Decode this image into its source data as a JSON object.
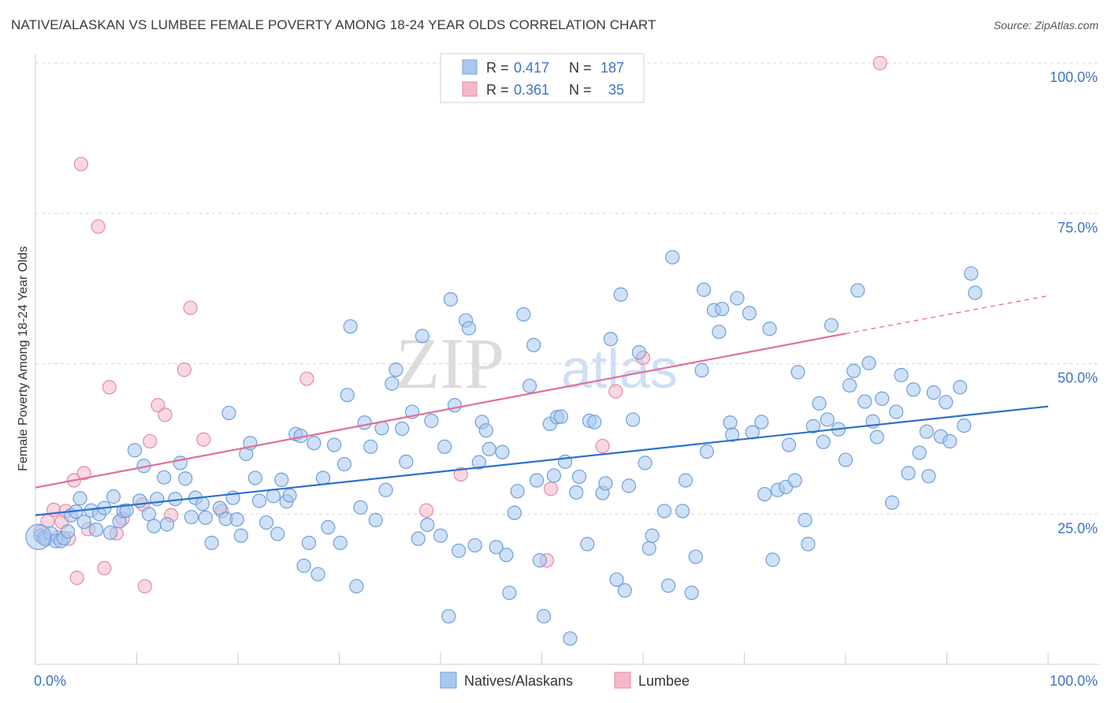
{
  "header": {
    "title": "NATIVE/ALASKAN VS LUMBEE FEMALE POVERTY AMONG 18-24 YEAR OLDS CORRELATION CHART",
    "source": "Source: ZipAtlas.com"
  },
  "watermark": {
    "zip": "ZIP",
    "atlas": "atlas"
  },
  "colors": {
    "blue_fill": "#a8c8f0",
    "blue_stroke": "#6f9fd8",
    "blue_line": "#2f6fcf",
    "pink_fill": "#f6b8c8",
    "pink_stroke": "#e48aa6",
    "pink_line": "#e06f98",
    "axis_text": "#3a74c4",
    "grid": "#d8d8d8"
  },
  "legend_top": {
    "rows": [
      {
        "r_label": "R = ",
        "r_value": "0.417",
        "n_label": "N = ",
        "n_value": "187",
        "color": "blue"
      },
      {
        "r_label": "R = ",
        "r_value": "0.361",
        "n_label": "N = ",
        "n_value": "35",
        "color": "pink"
      }
    ]
  },
  "legend_bottom": [
    {
      "label": "Natives/Alaskans",
      "color": "blue"
    },
    {
      "label": "Lumbee",
      "color": "pink"
    }
  ],
  "chart_data": {
    "type": "scatter",
    "title": "NATIVE/ALASKAN VS LUMBEE FEMALE POVERTY AMONG 18-24 YEAR OLDS CORRELATION CHART",
    "xlabel": "",
    "ylabel": "Female Poverty Among 18-24 Year Olds",
    "xlim": [
      0,
      100
    ],
    "ylim": [
      0,
      100
    ],
    "x_tick_labels": [
      "0.0%",
      "100.0%"
    ],
    "y_tick_labels": [
      "25.0%",
      "50.0%",
      "75.0%",
      "100.0%"
    ],
    "y_ticks": [
      25,
      50,
      75,
      100
    ],
    "grid": true,
    "legend_position": "top-center",
    "series": [
      {
        "name": "Natives/Alaskans",
        "color": "blue",
        "trend": {
          "x": [
            0,
            100
          ],
          "y": [
            24.8,
            42.9
          ]
        },
        "points": [
          [
            0.5,
            21.4
          ],
          [
            0.8,
            21.0
          ],
          [
            1.0,
            20.8
          ],
          [
            1.5,
            21.8
          ],
          [
            2.0,
            20.5
          ],
          [
            2.5,
            20.5
          ],
          [
            2.8,
            21.0
          ],
          [
            3.2,
            22.1
          ],
          [
            3.5,
            24.8
          ],
          [
            4.0,
            25.4
          ],
          [
            4.4,
            27.6
          ],
          [
            4.8,
            23.7
          ],
          [
            5.5,
            25.6
          ],
          [
            6.0,
            22.4
          ],
          [
            6.3,
            25.0
          ],
          [
            6.8,
            26.0
          ],
          [
            7.4,
            21.9
          ],
          [
            7.7,
            27.9
          ],
          [
            8.3,
            23.8
          ],
          [
            8.7,
            25.5
          ],
          [
            9.0,
            25.6
          ],
          [
            9.8,
            35.6
          ],
          [
            10.3,
            27.2
          ],
          [
            10.7,
            33.0
          ],
          [
            11.2,
            25.0
          ],
          [
            11.7,
            23.0
          ],
          [
            12.0,
            27.5
          ],
          [
            12.7,
            31.1
          ],
          [
            13.0,
            23.3
          ],
          [
            13.8,
            27.5
          ],
          [
            14.3,
            33.5
          ],
          [
            14.8,
            30.9
          ],
          [
            15.4,
            24.5
          ],
          [
            15.8,
            27.7
          ],
          [
            16.5,
            26.7
          ],
          [
            16.8,
            24.4
          ],
          [
            17.4,
            20.2
          ],
          [
            18.2,
            26.0
          ],
          [
            18.8,
            24.2
          ],
          [
            19.1,
            41.8
          ],
          [
            19.5,
            27.7
          ],
          [
            19.9,
            24.1
          ],
          [
            20.3,
            21.4
          ],
          [
            20.8,
            35.0
          ],
          [
            21.2,
            36.8
          ],
          [
            21.7,
            31.0
          ],
          [
            22.1,
            27.2
          ],
          [
            22.8,
            23.6
          ],
          [
            23.5,
            28.0
          ],
          [
            23.9,
            21.7
          ],
          [
            24.3,
            30.7
          ],
          [
            24.8,
            27.1
          ],
          [
            25.1,
            28.1
          ],
          [
            25.7,
            38.3
          ],
          [
            26.2,
            38.0
          ],
          [
            26.5,
            16.4
          ],
          [
            27.0,
            20.2
          ],
          [
            27.5,
            36.8
          ],
          [
            27.9,
            15.0
          ],
          [
            28.4,
            31.0
          ],
          [
            28.9,
            22.8
          ],
          [
            29.5,
            36.5
          ],
          [
            30.1,
            20.2
          ],
          [
            30.5,
            33.3
          ],
          [
            30.8,
            44.8
          ],
          [
            31.1,
            56.2
          ],
          [
            31.7,
            13.0
          ],
          [
            32.1,
            26.1
          ],
          [
            32.5,
            40.2
          ],
          [
            33.1,
            36.2
          ],
          [
            33.6,
            24.0
          ],
          [
            34.2,
            39.3
          ],
          [
            34.6,
            29.0
          ],
          [
            35.2,
            46.7
          ],
          [
            35.6,
            49.0
          ],
          [
            36.2,
            39.2
          ],
          [
            36.6,
            33.7
          ],
          [
            37.2,
            42.0
          ],
          [
            37.8,
            20.9
          ],
          [
            38.2,
            54.6
          ],
          [
            38.7,
            23.2
          ],
          [
            39.1,
            40.5
          ],
          [
            40.0,
            21.4
          ],
          [
            40.4,
            36.2
          ],
          [
            40.8,
            8.0
          ],
          [
            41.0,
            60.7
          ],
          [
            41.4,
            43.1
          ],
          [
            41.8,
            18.9
          ],
          [
            42.5,
            57.2
          ],
          [
            42.8,
            55.9
          ],
          [
            43.4,
            19.8
          ],
          [
            43.8,
            33.6
          ],
          [
            44.1,
            40.3
          ],
          [
            44.5,
            38.9
          ],
          [
            44.8,
            35.8
          ],
          [
            45.5,
            19.5
          ],
          [
            46.1,
            35.3
          ],
          [
            46.5,
            18.2
          ],
          [
            46.8,
            11.9
          ],
          [
            47.3,
            25.2
          ],
          [
            47.6,
            28.8
          ],
          [
            48.2,
            58.2
          ],
          [
            48.8,
            46.3
          ],
          [
            49.2,
            53.1
          ],
          [
            49.5,
            30.6
          ],
          [
            49.8,
            17.3
          ],
          [
            50.2,
            8.0
          ],
          [
            50.8,
            40.0
          ],
          [
            51.2,
            31.4
          ],
          [
            51.5,
            41.1
          ],
          [
            51.9,
            41.2
          ],
          [
            52.3,
            33.7
          ],
          [
            52.8,
            4.3
          ],
          [
            53.4,
            28.6
          ],
          [
            53.7,
            31.2
          ],
          [
            54.5,
            20.0
          ],
          [
            54.7,
            40.5
          ],
          [
            55.2,
            40.3
          ],
          [
            56.0,
            28.5
          ],
          [
            56.3,
            30.1
          ],
          [
            56.8,
            54.1
          ],
          [
            57.4,
            14.1
          ],
          [
            57.8,
            61.5
          ],
          [
            58.2,
            12.3
          ],
          [
            58.6,
            29.7
          ],
          [
            59.0,
            40.7
          ],
          [
            59.6,
            51.9
          ],
          [
            60.2,
            33.5
          ],
          [
            60.6,
            19.3
          ],
          [
            60.9,
            21.4
          ],
          [
            62.1,
            25.5
          ],
          [
            62.5,
            13.1
          ],
          [
            62.9,
            67.7
          ],
          [
            63.9,
            25.5
          ],
          [
            64.2,
            30.6
          ],
          [
            64.8,
            11.9
          ],
          [
            65.2,
            17.9
          ],
          [
            65.8,
            48.9
          ],
          [
            66.0,
            62.3
          ],
          [
            66.3,
            35.4
          ],
          [
            67.0,
            58.9
          ],
          [
            67.5,
            55.3
          ],
          [
            67.8,
            59.1
          ],
          [
            68.6,
            40.2
          ],
          [
            68.8,
            38.2
          ],
          [
            69.3,
            60.9
          ],
          [
            70.5,
            58.4
          ],
          [
            70.8,
            38.6
          ],
          [
            71.7,
            40.3
          ],
          [
            72.0,
            28.3
          ],
          [
            72.5,
            55.8
          ],
          [
            72.8,
            17.4
          ],
          [
            73.3,
            29.0
          ],
          [
            74.1,
            29.5
          ],
          [
            74.4,
            36.5
          ],
          [
            75.0,
            30.6
          ],
          [
            75.3,
            48.6
          ],
          [
            76.0,
            24.0
          ],
          [
            76.3,
            20.0
          ],
          [
            76.8,
            39.6
          ],
          [
            77.4,
            43.4
          ],
          [
            77.8,
            37.0
          ],
          [
            78.2,
            40.7
          ],
          [
            78.6,
            56.4
          ],
          [
            79.3,
            39.1
          ],
          [
            80.0,
            34.0
          ],
          [
            80.4,
            46.4
          ],
          [
            80.8,
            48.8
          ],
          [
            81.2,
            62.2
          ],
          [
            81.9,
            43.7
          ],
          [
            82.3,
            50.1
          ],
          [
            82.7,
            40.4
          ],
          [
            83.1,
            37.8
          ],
          [
            83.6,
            44.2
          ],
          [
            84.6,
            26.9
          ],
          [
            85.0,
            42.0
          ],
          [
            85.5,
            48.1
          ],
          [
            86.2,
            31.8
          ],
          [
            86.7,
            45.7
          ],
          [
            87.3,
            35.2
          ],
          [
            88.0,
            38.7
          ],
          [
            88.2,
            31.3
          ],
          [
            88.7,
            45.2
          ],
          [
            89.4,
            37.9
          ],
          [
            89.9,
            43.6
          ],
          [
            90.3,
            37.1
          ],
          [
            91.3,
            46.1
          ],
          [
            91.7,
            39.7
          ],
          [
            92.4,
            65.0
          ],
          [
            92.8,
            61.8
          ]
        ]
      },
      {
        "name": "Lumbee",
        "color": "pink",
        "trend": {
          "x": [
            0,
            80
          ],
          "y": [
            29.4,
            55.0
          ]
        },
        "trend_extension": {
          "x": [
            80,
            100
          ],
          "y": [
            55.0,
            61.3
          ]
        },
        "points": [
          [
            0.5,
            22.0
          ],
          [
            1.2,
            23.8
          ],
          [
            1.8,
            25.7
          ],
          [
            2.2,
            21.1
          ],
          [
            2.6,
            23.7
          ],
          [
            3.0,
            25.5
          ],
          [
            3.3,
            20.9
          ],
          [
            3.8,
            30.6
          ],
          [
            4.1,
            14.4
          ],
          [
            4.5,
            83.2
          ],
          [
            4.8,
            31.8
          ],
          [
            5.2,
            22.5
          ],
          [
            6.2,
            72.8
          ],
          [
            6.8,
            16.0
          ],
          [
            7.3,
            46.1
          ],
          [
            8.0,
            21.8
          ],
          [
            8.6,
            24.2
          ],
          [
            10.6,
            26.6
          ],
          [
            10.8,
            13.0
          ],
          [
            11.3,
            37.1
          ],
          [
            12.1,
            43.1
          ],
          [
            12.8,
            41.5
          ],
          [
            13.4,
            24.8
          ],
          [
            14.7,
            49.0
          ],
          [
            15.3,
            59.3
          ],
          [
            16.6,
            37.4
          ],
          [
            18.4,
            25.5
          ],
          [
            26.8,
            47.5
          ],
          [
            38.6,
            25.6
          ],
          [
            42.0,
            31.6
          ],
          [
            50.5,
            17.3
          ],
          [
            50.9,
            29.2
          ],
          [
            56.0,
            36.3
          ],
          [
            57.3,
            45.4
          ],
          [
            60.0,
            51.0
          ],
          [
            83.4,
            100.0
          ]
        ]
      }
    ]
  }
}
